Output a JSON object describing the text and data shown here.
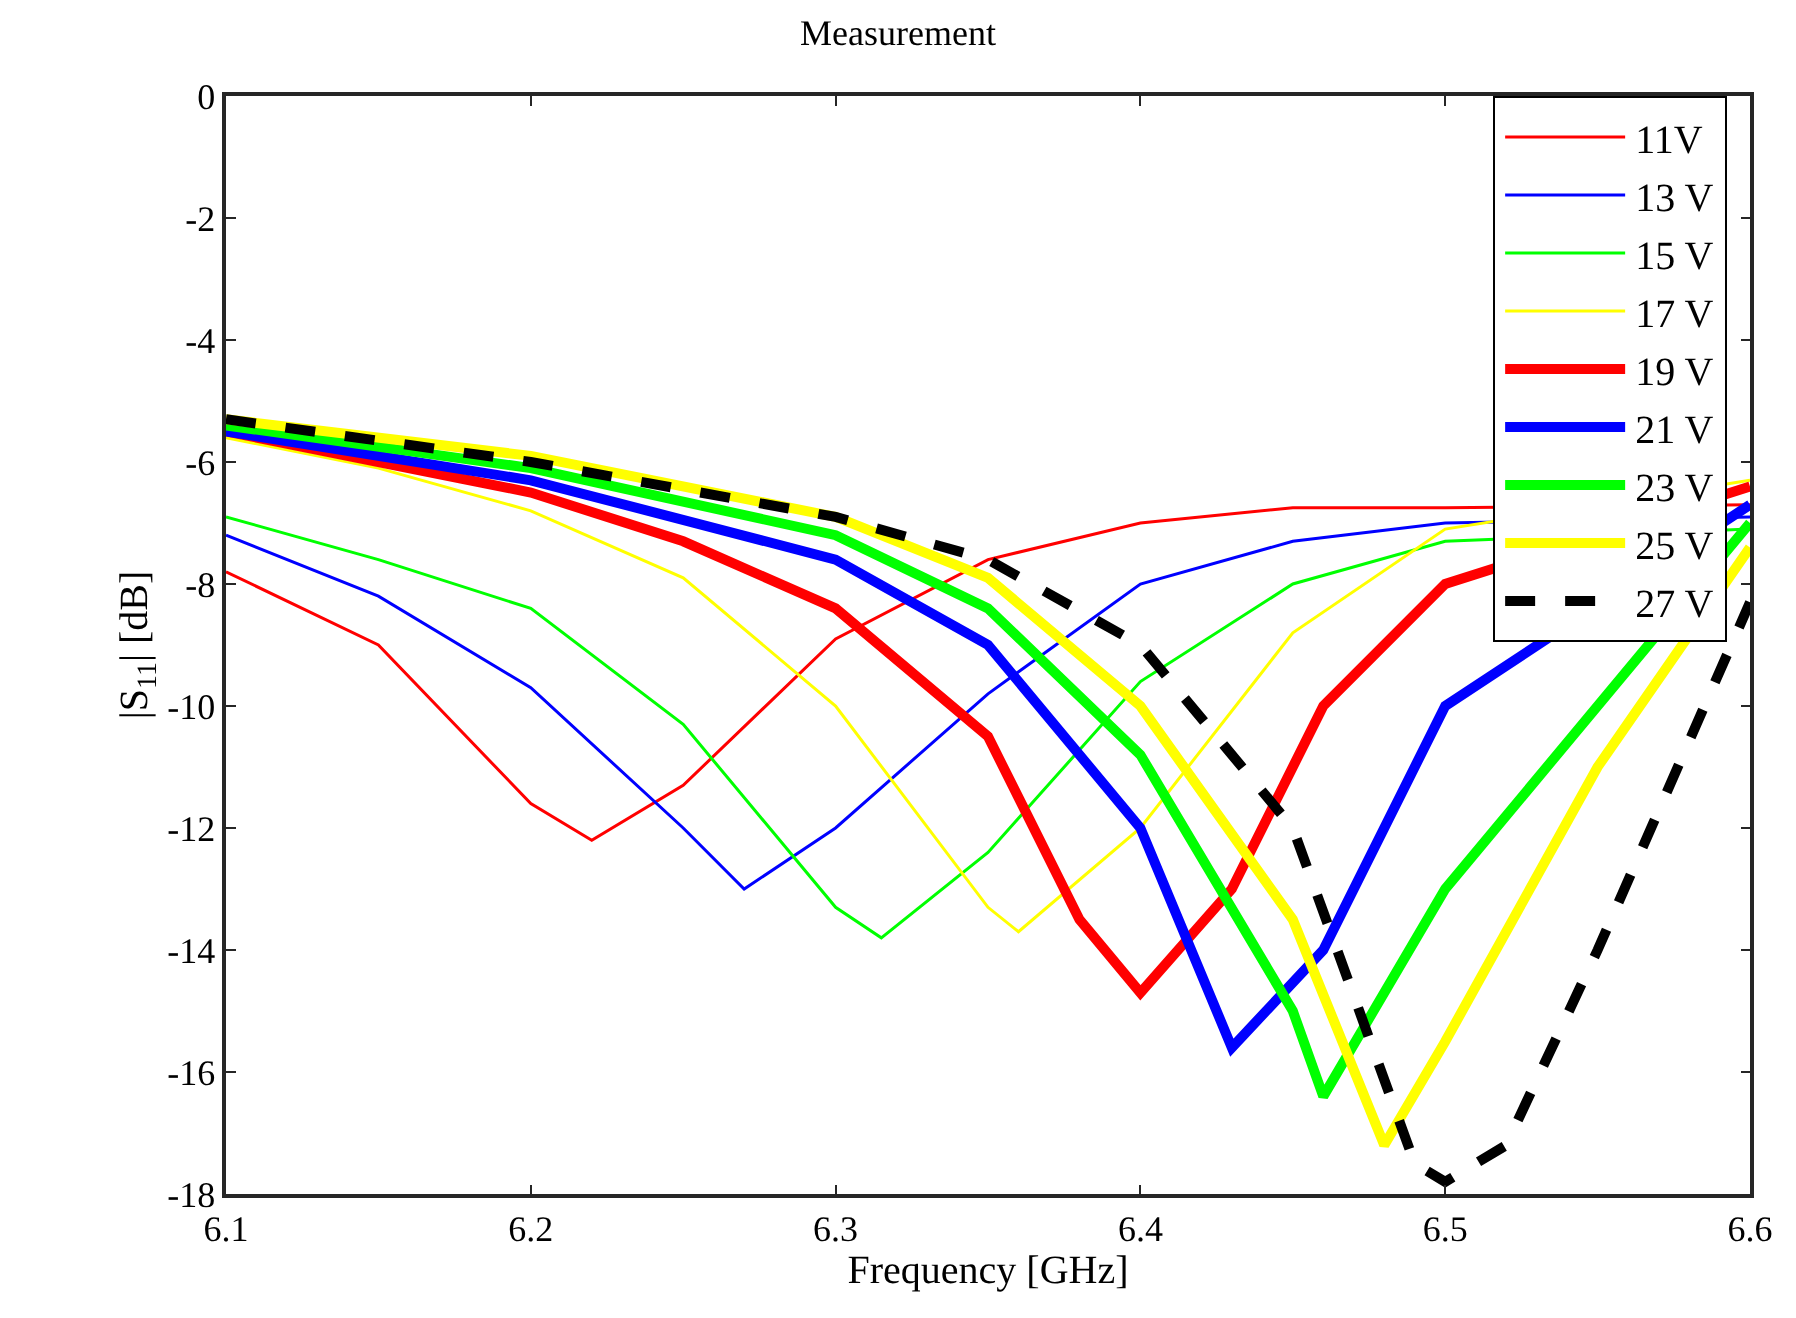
{
  "chart_data": {
    "type": "line",
    "title": "Measurement",
    "xlabel": "Frequency [GHz]",
    "ylabel": "|S$_{11}$| [dB]",
    "xlim": [
      6.1,
      6.6
    ],
    "xticks": [
      6.1,
      6.2,
      6.3,
      6.4,
      6.5,
      6.6
    ],
    "ylim": [
      -18,
      0
    ],
    "yticks": [
      -18,
      -16,
      -14,
      -12,
      -10,
      -8,
      -6,
      -4,
      -2,
      0
    ],
    "legend": "top right",
    "series": [
      {
        "name": "11V",
        "color": "#ff0000",
        "line_style": "solid",
        "x": [
          6.1,
          6.15,
          6.2,
          6.22,
          6.25,
          6.3,
          6.35,
          6.4,
          6.45,
          6.5,
          6.6
        ],
        "values": [
          -7.8,
          -9.0,
          -11.6,
          -12.2,
          -11.3,
          -8.9,
          -7.6,
          -7.0,
          -6.75,
          -6.75,
          -6.7
        ]
      },
      {
        "name": "13 V",
        "color": "#0000ff",
        "line_style": "solid",
        "x": [
          6.1,
          6.15,
          6.2,
          6.25,
          6.27,
          6.3,
          6.35,
          6.4,
          6.45,
          6.5,
          6.6
        ],
        "values": [
          -7.2,
          -8.2,
          -9.7,
          -12.0,
          -13.0,
          -12.0,
          -9.8,
          -8.0,
          -7.3,
          -7.0,
          -6.9
        ]
      },
      {
        "name": "15 V",
        "color": "#00ff00",
        "line_style": "solid",
        "x": [
          6.1,
          6.15,
          6.2,
          6.25,
          6.3,
          6.315,
          6.35,
          6.4,
          6.45,
          6.5,
          6.6
        ],
        "values": [
          -6.9,
          -7.6,
          -8.4,
          -10.3,
          -13.3,
          -13.8,
          -12.4,
          -9.6,
          -8.0,
          -7.3,
          -7.1
        ]
      },
      {
        "name": "17 V",
        "color": "#ffff00",
        "line_style": "solid",
        "x": [
          6.1,
          6.15,
          6.2,
          6.25,
          6.3,
          6.35,
          6.36,
          6.4,
          6.45,
          6.5,
          6.6
        ],
        "values": [
          -5.6,
          -6.1,
          -6.8,
          -7.9,
          -10.0,
          -13.3,
          -13.7,
          -12.0,
          -8.8,
          -7.1,
          -6.3
        ]
      },
      {
        "name": "19 V",
        "color": "#ff0000",
        "line_style": "solid",
        "x": [
          6.1,
          6.15,
          6.2,
          6.25,
          6.3,
          6.35,
          6.38,
          6.4,
          6.43,
          6.46,
          6.5,
          6.6
        ],
        "values": [
          -5.5,
          -6.0,
          -6.5,
          -7.3,
          -8.4,
          -10.5,
          -13.5,
          -14.7,
          -13.0,
          -10.0,
          -8.0,
          -6.4
        ]
      },
      {
        "name": "21 V",
        "color": "#0000ff",
        "line_style": "solid",
        "x": [
          6.1,
          6.2,
          6.3,
          6.35,
          6.4,
          6.43,
          6.46,
          6.5,
          6.6
        ],
        "values": [
          -5.5,
          -6.3,
          -7.6,
          -9.0,
          -12.0,
          -15.6,
          -14.0,
          -10.0,
          -6.7
        ]
      },
      {
        "name": "23 V",
        "color": "#00ff00",
        "line_style": "solid",
        "x": [
          6.1,
          6.2,
          6.3,
          6.35,
          6.4,
          6.45,
          6.46,
          6.5,
          6.6
        ],
        "values": [
          -5.4,
          -6.1,
          -7.2,
          -8.4,
          -10.8,
          -15.0,
          -16.4,
          -13.0,
          -7.0
        ]
      },
      {
        "name": "25 V",
        "color": "#ffff00",
        "line_style": "solid",
        "x": [
          6.1,
          6.2,
          6.3,
          6.35,
          6.4,
          6.45,
          6.48,
          6.5,
          6.55,
          6.6
        ],
        "values": [
          -5.3,
          -5.9,
          -6.9,
          -7.9,
          -10.0,
          -13.5,
          -17.2,
          -15.5,
          -11.0,
          -7.4
        ]
      },
      {
        "name": "27 V",
        "color": "#000000",
        "line_style": "dashed",
        "x": [
          6.1,
          6.2,
          6.3,
          6.35,
          6.4,
          6.45,
          6.49,
          6.5,
          6.52,
          6.55,
          6.6
        ],
        "values": [
          -5.3,
          -6.0,
          -6.9,
          -7.6,
          -9.0,
          -12.0,
          -17.5,
          -17.8,
          -17.2,
          -14.0,
          -8.3
        ]
      }
    ]
  }
}
